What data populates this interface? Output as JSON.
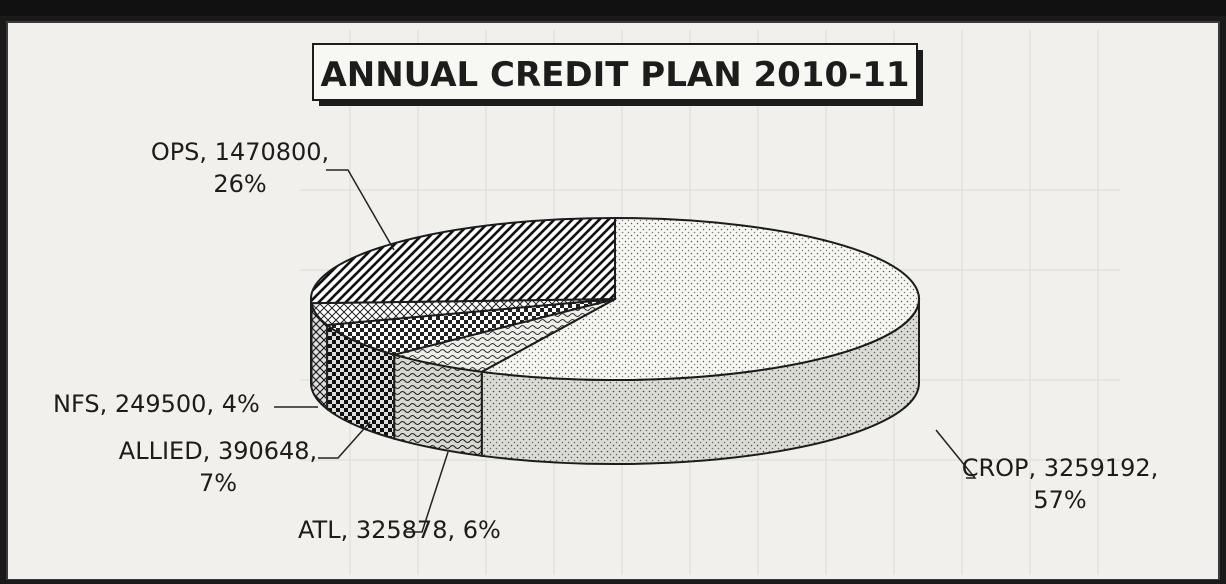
{
  "chart_data": {
    "type": "pie",
    "title": "ANNUAL CREDIT PLAN 2010-11",
    "slices": [
      {
        "name": "CROP",
        "value": 3259192,
        "percent": 57,
        "label_line1": "CROP, 3259192,",
        "label_line2": "57%",
        "pattern": "dots"
      },
      {
        "name": "ATL",
        "value": 325878,
        "percent": 6,
        "label_line1": "ATL, 325878, 6%",
        "label_line2": "",
        "pattern": "waves"
      },
      {
        "name": "ALLIED",
        "value": 390648,
        "percent": 7,
        "label_line1": "ALLIED, 390648,",
        "label_line2": "7%",
        "pattern": "checker"
      },
      {
        "name": "NFS",
        "value": 249500,
        "percent": 4,
        "label_line1": "NFS, 249500, 4%",
        "label_line2": "",
        "pattern": "crosshatch"
      },
      {
        "name": "OPS",
        "value": 1470800,
        "percent": 26,
        "label_line1": "OPS, 1470800,",
        "label_line2": "26%",
        "pattern": "diagonal"
      }
    ],
    "style": "3d-pie",
    "legend": "none",
    "colors": {
      "background": "#f1f0ec",
      "ink": "#1c1c1c",
      "ghost_text": "#d6d5d0"
    }
  }
}
